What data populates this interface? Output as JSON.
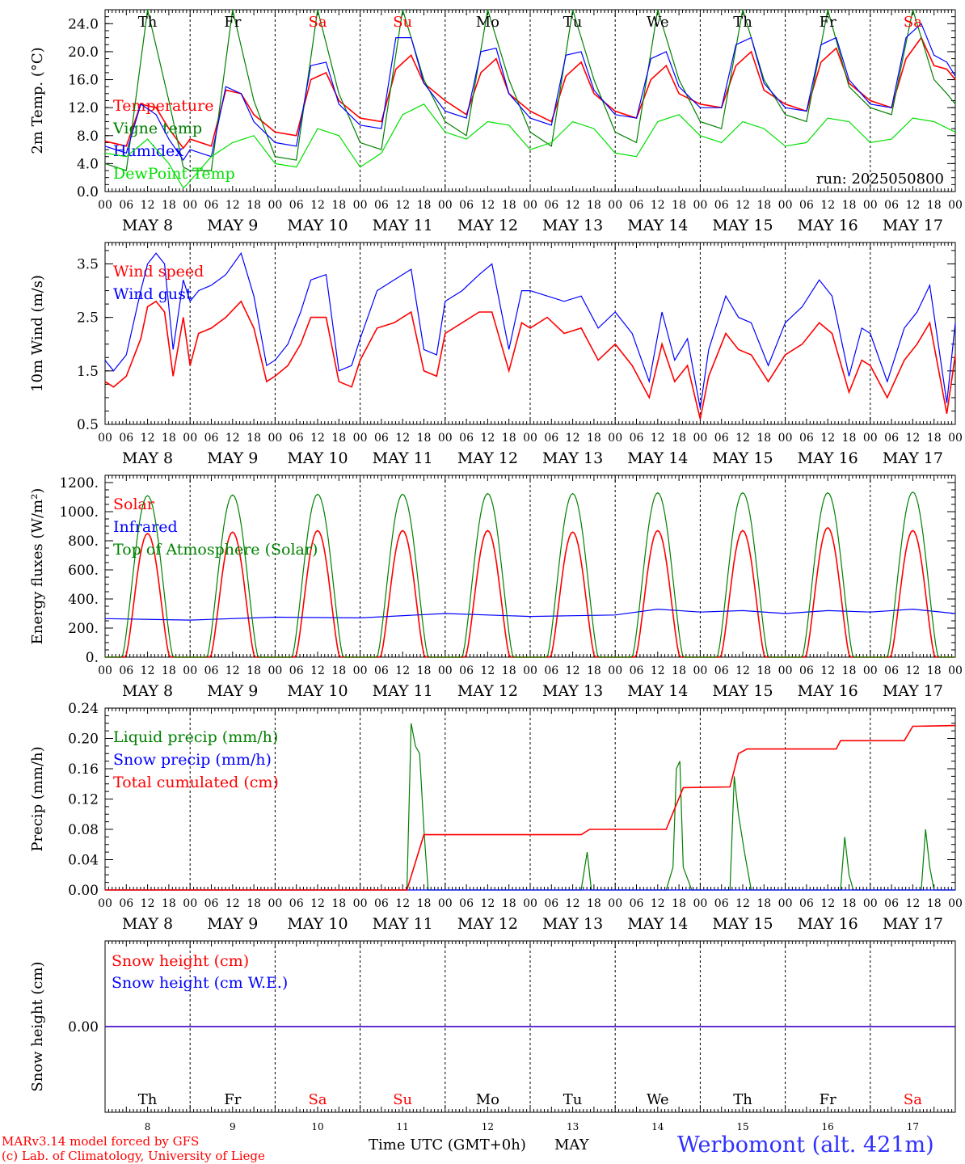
{
  "run_label": "run: 2025050800",
  "x_axis": {
    "hour_ticks": [
      "00",
      "06",
      "12",
      "18"
    ],
    "end_tick": "00",
    "dates": [
      "MAY  8",
      "MAY  9",
      "MAY 10",
      "MAY 11",
      "MAY 12",
      "MAY 13",
      "MAY 14",
      "MAY 15",
      "MAY 16",
      "MAY 17"
    ],
    "day_numbers": [
      "8",
      "9",
      "10",
      "11",
      "12",
      "13",
      "14",
      "15",
      "16",
      "17"
    ],
    "weekdays": [
      "Th",
      "Fr",
      "Sa",
      "Su",
      "Mo",
      "Tu",
      "We",
      "Th",
      "Fr",
      "Sa"
    ],
    "weekend_flags": [
      false,
      false,
      true,
      true,
      false,
      false,
      false,
      false,
      false,
      true
    ],
    "xlabel": "Time UTC (GMT+0h)",
    "month_label": "MAY"
  },
  "footer": {
    "credit_line1": "MARv3.14 model forced by GFS",
    "credit_line2": "(c) Lab. of Climatology, University of Liege",
    "station": "Werbomont (alt. 421m)"
  },
  "colors": {
    "red": "#ff0000",
    "green": "#008000",
    "blue": "#0000ff",
    "lightgreen": "#00e000",
    "grid": "#000000",
    "station": "#3030ff"
  },
  "chart_data": [
    {
      "type": "line",
      "ylabel": "2m Temp. (°C)",
      "ylim": [
        0,
        26
      ],
      "yticks": [
        0,
        4,
        8,
        12,
        16,
        20,
        24
      ],
      "yticklabels": [
        "0.0",
        "4.0",
        "8.0",
        "12.0",
        "16.0",
        "20.0",
        "24.0"
      ],
      "x_days": [
        0,
        10
      ],
      "series": [
        {
          "name": "Temperature",
          "color": "red",
          "x": [
            0,
            0.25,
            0.42,
            0.6,
            0.75,
            0.92,
            1.0,
            1.25,
            1.42,
            1.6,
            1.75,
            2.0,
            2.25,
            2.42,
            2.6,
            2.75,
            3.0,
            3.25,
            3.42,
            3.6,
            3.75,
            4.0,
            4.25,
            4.42,
            4.6,
            4.75,
            5.0,
            5.25,
            5.42,
            5.6,
            5.75,
            6.0,
            6.25,
            6.42,
            6.6,
            6.75,
            7.0,
            7.25,
            7.42,
            7.6,
            7.75,
            8.0,
            8.25,
            8.42,
            8.6,
            8.75,
            9.0,
            9.25,
            9.42,
            9.6,
            9.75,
            9.9,
            10.0
          ],
          "y": [
            7.2,
            6.5,
            12.5,
            12.0,
            9.0,
            6.2,
            7.5,
            6.5,
            14.5,
            14.0,
            11.0,
            8.5,
            8.0,
            16.0,
            17.0,
            13.0,
            10.5,
            10.0,
            17.5,
            19.5,
            15.5,
            13.0,
            11.0,
            17.0,
            19.0,
            14.0,
            11.5,
            10.0,
            16.5,
            18.5,
            14.0,
            11.5,
            10.5,
            16.0,
            18.0,
            14.0,
            12.5,
            12.0,
            18.0,
            20.0,
            14.5,
            12.5,
            11.5,
            18.5,
            20.5,
            15.5,
            13.0,
            12.0,
            19.0,
            22.0,
            18.0,
            17.5,
            16.0
          ]
        },
        {
          "name": "Vigne temp",
          "color": "green",
          "x": [
            0,
            0.25,
            0.5,
            0.75,
            0.92,
            1.0,
            1.25,
            1.5,
            1.75,
            2.0,
            2.25,
            2.5,
            2.75,
            3.0,
            3.25,
            3.5,
            3.75,
            4.0,
            4.25,
            4.5,
            4.75,
            5.0,
            5.25,
            5.5,
            5.75,
            6.0,
            6.25,
            6.5,
            6.75,
            7.0,
            7.25,
            7.5,
            7.75,
            8.0,
            8.25,
            8.5,
            8.75,
            9.0,
            9.25,
            9.5,
            9.75,
            9.9,
            10.0
          ],
          "y": [
            4.0,
            3.0,
            26.0,
            13.0,
            3.5,
            3.0,
            3.0,
            26.0,
            13.0,
            5.0,
            4.5,
            26.0,
            14.0,
            7.0,
            6.0,
            26.0,
            16.0,
            10.0,
            8.0,
            26.0,
            16.0,
            8.5,
            6.5,
            26.0,
            16.0,
            8.5,
            7.0,
            26.0,
            16.0,
            10.0,
            9.0,
            26.0,
            16.0,
            11.0,
            10.0,
            26.0,
            15.0,
            12.0,
            11.0,
            26.0,
            16.0,
            14.0,
            12.5
          ]
        },
        {
          "name": "Humidex",
          "color": "blue",
          "x": [
            0,
            0.25,
            0.42,
            0.6,
            0.75,
            0.92,
            1.0,
            1.25,
            1.42,
            1.6,
            1.75,
            2.0,
            2.25,
            2.42,
            2.6,
            2.75,
            3.0,
            3.25,
            3.42,
            3.6,
            3.75,
            4.0,
            4.25,
            4.42,
            4.6,
            4.75,
            5.0,
            5.25,
            5.42,
            5.6,
            5.75,
            6.0,
            6.25,
            6.42,
            6.6,
            6.75,
            7.0,
            7.25,
            7.42,
            7.6,
            7.75,
            8.0,
            8.25,
            8.42,
            8.6,
            8.75,
            9.0,
            9.25,
            9.42,
            9.6,
            9.75,
            9.9,
            10.0
          ],
          "y": [
            6.5,
            5.5,
            12.5,
            11.0,
            7.5,
            4.5,
            6.0,
            5.0,
            15.0,
            14.0,
            10.0,
            7.0,
            6.5,
            18.0,
            18.5,
            12.5,
            9.5,
            9.0,
            22.0,
            22.0,
            15.5,
            11.5,
            10.5,
            20.0,
            20.5,
            14.0,
            10.5,
            9.5,
            19.5,
            20.0,
            14.5,
            11.0,
            10.5,
            19.0,
            20.0,
            15.0,
            12.0,
            12.0,
            21.0,
            22.0,
            15.5,
            12.0,
            11.5,
            21.0,
            22.0,
            16.0,
            12.5,
            12.0,
            22.0,
            24.0,
            19.5,
            18.5,
            16.5
          ]
        },
        {
          "name": "DewPoint Temp",
          "color": "lightgreen",
          "x": [
            0,
            0.25,
            0.5,
            0.75,
            0.92,
            1.0,
            1.25,
            1.5,
            1.75,
            2.0,
            2.25,
            2.5,
            2.75,
            3.0,
            3.25,
            3.5,
            3.75,
            4.0,
            4.25,
            4.5,
            4.75,
            5.0,
            5.25,
            5.5,
            5.75,
            6.0,
            6.25,
            6.5,
            6.75,
            7.0,
            7.25,
            7.5,
            7.75,
            8.0,
            8.25,
            8.5,
            8.75,
            9.0,
            9.25,
            9.5,
            9.75,
            10.0
          ],
          "y": [
            5.5,
            5.0,
            7.5,
            4.0,
            0.5,
            1.5,
            5.0,
            7.0,
            8.0,
            4.0,
            3.5,
            9.0,
            8.0,
            3.5,
            5.5,
            11.0,
            12.5,
            8.5,
            7.5,
            10.0,
            9.5,
            6.0,
            7.0,
            10.0,
            9.0,
            5.5,
            5.0,
            10.0,
            11.0,
            8.0,
            7.0,
            10.0,
            9.0,
            6.5,
            7.0,
            10.5,
            10.0,
            7.0,
            7.5,
            10.5,
            10.0,
            8.5
          ]
        }
      ]
    },
    {
      "type": "line",
      "ylabel": "10m Wind (m/s)",
      "ylim": [
        0.5,
        3.9
      ],
      "yticks": [
        0.5,
        1.5,
        2.5,
        3.5
      ],
      "yticklabels": [
        "0.5",
        "1.5",
        "2.5",
        "3.5"
      ],
      "series": [
        {
          "name": "Wind speed",
          "color": "red",
          "x": [
            0,
            0.1,
            0.25,
            0.42,
            0.5,
            0.6,
            0.7,
            0.8,
            0.92,
            1.0,
            1.1,
            1.25,
            1.42,
            1.6,
            1.75,
            1.9,
            2.0,
            2.15,
            2.3,
            2.42,
            2.6,
            2.75,
            2.9,
            3.0,
            3.2,
            3.4,
            3.6,
            3.75,
            3.9,
            4.0,
            4.2,
            4.4,
            4.55,
            4.75,
            4.9,
            5.0,
            5.2,
            5.4,
            5.6,
            5.8,
            6.0,
            6.2,
            6.4,
            6.55,
            6.7,
            6.85,
            7.0,
            7.1,
            7.3,
            7.45,
            7.6,
            7.8,
            8.0,
            8.2,
            8.4,
            8.55,
            8.75,
            8.9,
            9.0,
            9.2,
            9.4,
            9.55,
            9.7,
            9.9,
            10.0
          ],
          "y": [
            1.3,
            1.2,
            1.4,
            2.1,
            2.7,
            2.8,
            2.6,
            1.4,
            2.5,
            1.6,
            2.2,
            2.3,
            2.5,
            2.8,
            2.3,
            1.3,
            1.4,
            1.6,
            2.0,
            2.5,
            2.5,
            1.3,
            1.2,
            1.7,
            2.3,
            2.4,
            2.6,
            1.5,
            1.4,
            2.2,
            2.4,
            2.6,
            2.6,
            1.5,
            2.4,
            2.3,
            2.5,
            2.2,
            2.3,
            1.7,
            2.0,
            1.6,
            1.0,
            2.0,
            1.3,
            1.6,
            0.6,
            1.4,
            2.2,
            1.9,
            1.8,
            1.3,
            1.8,
            2.0,
            2.4,
            2.2,
            1.1,
            1.7,
            1.6,
            1.0,
            1.7,
            2.0,
            2.4,
            0.7,
            1.8
          ]
        },
        {
          "name": "Wind gust",
          "color": "blue",
          "x": [
            0,
            0.1,
            0.25,
            0.42,
            0.5,
            0.6,
            0.7,
            0.8,
            0.92,
            1.0,
            1.1,
            1.25,
            1.42,
            1.6,
            1.75,
            1.9,
            2.0,
            2.15,
            2.3,
            2.42,
            2.6,
            2.75,
            2.9,
            3.0,
            3.2,
            3.4,
            3.6,
            3.75,
            3.9,
            4.0,
            4.2,
            4.4,
            4.55,
            4.75,
            4.9,
            5.0,
            5.2,
            5.4,
            5.6,
            5.8,
            6.0,
            6.2,
            6.4,
            6.55,
            6.7,
            6.85,
            7.0,
            7.1,
            7.3,
            7.45,
            7.6,
            7.8,
            8.0,
            8.2,
            8.4,
            8.55,
            8.75,
            8.9,
            9.0,
            9.2,
            9.4,
            9.55,
            9.7,
            9.9,
            10.0
          ],
          "y": [
            1.7,
            1.5,
            1.8,
            3.0,
            3.5,
            3.7,
            3.5,
            1.9,
            3.2,
            2.8,
            3.0,
            3.1,
            3.3,
            3.7,
            2.9,
            1.6,
            1.7,
            2.0,
            2.6,
            3.2,
            3.3,
            1.5,
            1.6,
            2.1,
            3.0,
            3.2,
            3.4,
            1.9,
            1.8,
            2.8,
            3.0,
            3.3,
            3.5,
            1.9,
            3.0,
            3.0,
            2.9,
            2.8,
            2.9,
            2.3,
            2.6,
            2.2,
            1.3,
            2.6,
            1.7,
            2.1,
            0.8,
            1.9,
            2.9,
            2.5,
            2.4,
            1.6,
            2.4,
            2.7,
            3.2,
            2.9,
            1.4,
            2.3,
            2.2,
            1.3,
            2.3,
            2.6,
            3.1,
            0.9,
            2.4
          ]
        }
      ]
    },
    {
      "type": "line",
      "ylabel": "Energy fluxes (W/m²)",
      "ylim": [
        0,
        1250
      ],
      "yticks": [
        0,
        200,
        400,
        600,
        800,
        1000,
        1200
      ],
      "yticklabels": [
        "0.",
        "200.",
        "400.",
        "600.",
        "800.",
        "1000.",
        "1200."
      ],
      "series": [
        {
          "name": "Solar",
          "color": "red",
          "day_peaks": [
            850,
            860,
            870,
            870,
            870,
            860,
            870,
            870,
            890,
            870
          ]
        },
        {
          "name": "Infrared",
          "color": "blue",
          "x": [
            0,
            1,
            2,
            3,
            4,
            5,
            6,
            6.5,
            7,
            7.5,
            8,
            8.5,
            9,
            9.5,
            10
          ],
          "y": [
            265,
            255,
            275,
            270,
            300,
            280,
            290,
            330,
            310,
            320,
            300,
            320,
            310,
            330,
            300
          ]
        },
        {
          "name": "Top of Atmosphere (Solar)",
          "color": "green",
          "day_peaks": [
            1110,
            1115,
            1120,
            1120,
            1125,
            1125,
            1130,
            1130,
            1130,
            1135
          ]
        }
      ]
    },
    {
      "type": "line",
      "ylabel": "Precip (mm/h)",
      "ylim": [
        0,
        0.24
      ],
      "yticks": [
        0,
        0.04,
        0.08,
        0.12,
        0.16,
        0.2,
        0.24
      ],
      "yticklabels": [
        "0.00",
        "0.04",
        "0.08",
        "0.12",
        "0.16",
        "0.20",
        "0.24"
      ],
      "series": [
        {
          "name": "Liquid precip (mm/h)",
          "color": "green",
          "x": [
            0,
            3.55,
            3.6,
            3.65,
            3.7,
            3.75,
            3.8,
            3.9,
            4.0,
            5.6,
            5.67,
            5.72,
            5.8,
            6.6,
            6.68,
            6.72,
            6.76,
            6.8,
            6.9,
            7.0,
            7.35,
            7.4,
            7.45,
            7.52,
            7.6,
            7.7,
            8.0,
            8.65,
            8.7,
            8.75,
            8.8,
            9.0,
            9.6,
            9.65,
            9.7,
            9.75,
            9.8,
            10.0
          ],
          "y": [
            0,
            0,
            0.22,
            0.19,
            0.18,
            0.08,
            0,
            0,
            0,
            0,
            0.05,
            0,
            0,
            0,
            0.03,
            0.16,
            0.17,
            0.03,
            0,
            0,
            0,
            0.15,
            0.1,
            0.05,
            0,
            0,
            0,
            0,
            0.07,
            0.02,
            0,
            0,
            0,
            0.08,
            0.03,
            0,
            0,
            0
          ]
        },
        {
          "name": "Snow precip (mm/h)",
          "color": "blue",
          "x": [
            0,
            10
          ],
          "y": [
            0,
            0
          ]
        },
        {
          "name": "Total cumulated (cm)",
          "color": "red",
          "x": [
            0,
            3.55,
            3.75,
            5.6,
            5.7,
            6.6,
            6.8,
            7.35,
            7.45,
            7.55,
            8.6,
            8.65,
            9.4,
            9.5,
            10.0
          ],
          "y": [
            0,
            0,
            0.073,
            0.073,
            0.08,
            0.08,
            0.135,
            0.136,
            0.18,
            0.186,
            0.186,
            0.197,
            0.197,
            0.216,
            0.217
          ]
        }
      ]
    },
    {
      "type": "line",
      "ylabel": "Snow height (cm)",
      "ylim": [
        -1,
        1
      ],
      "yticks": [
        0
      ],
      "yticklabels": [
        "0.00"
      ],
      "series": [
        {
          "name": "Snow height (cm)",
          "color": "red",
          "x": [
            0,
            10
          ],
          "y": [
            0,
            0
          ]
        },
        {
          "name": "Snow height (cm W.E.)",
          "color": "blue",
          "x": [
            0,
            10
          ],
          "y": [
            0,
            0
          ]
        }
      ]
    }
  ]
}
